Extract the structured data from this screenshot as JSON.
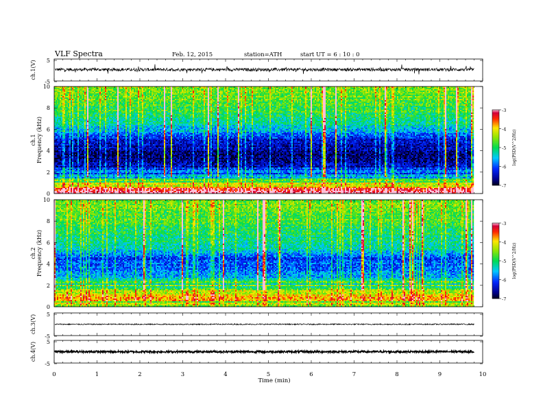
{
  "header": {
    "title": "VLF  Spectra",
    "date": "Feb. 12, 2015",
    "station": "station=ATH",
    "start": "start  UT  =   6  : 10 : 0"
  },
  "chart_data": {
    "type": "heatmap",
    "xlabel": "Time  (min)",
    "xlim": [
      0,
      10
    ],
    "x_ticks": [
      "0",
      "1",
      "2",
      "3",
      "4",
      "5",
      "6",
      "7",
      "8",
      "9",
      "10"
    ],
    "data_end_min": 9.8,
    "panels": [
      {
        "kind": "waveform",
        "ylabel": "ch.1(V)",
        "ylim": [
          -5,
          5
        ],
        "y_ticks": [
          "5",
          "-5"
        ],
        "baseline": 0.2,
        "noise": 0.7,
        "spikes": true
      },
      {
        "kind": "spectrogram",
        "ylabel": [
          "ch.1",
          "Frequency  (kHz)"
        ],
        "ylim": [
          0,
          10
        ],
        "y_ticks": [
          "0",
          "2",
          "4",
          "6",
          "8",
          "10"
        ],
        "colorbar": {
          "label": "log(PSD(V^2/Hz)",
          "range": [
            -7,
            -3
          ],
          "ticks": [
            "-3",
            "-4",
            "-5",
            "-6",
            "-7"
          ]
        },
        "profile": [
          {
            "f": 0.0,
            "v": -3.4
          },
          {
            "f": 0.5,
            "v": -3.2
          },
          {
            "f": 0.9,
            "v": -4.3
          },
          {
            "f": 1.6,
            "v": -5.6
          },
          {
            "f": 2.5,
            "v": -6.4
          },
          {
            "f": 3.5,
            "v": -6.6
          },
          {
            "f": 5.0,
            "v": -6.3
          },
          {
            "f": 6.0,
            "v": -5.4
          },
          {
            "f": 7.0,
            "v": -5.0
          },
          {
            "f": 8.5,
            "v": -4.6
          },
          {
            "f": 10.0,
            "v": -4.4
          }
        ]
      },
      {
        "kind": "spectrogram",
        "ylabel": [
          "ch.2",
          "Frequency  (kHz)"
        ],
        "ylim": [
          0,
          10
        ],
        "y_ticks": [
          "0",
          "2",
          "4",
          "6",
          "8",
          "10"
        ],
        "colorbar": {
          "label": "log(PSD(V^2/Hz)",
          "range": [
            -7,
            -3
          ],
          "ticks": [
            "-3",
            "-4",
            "-5",
            "-6",
            "-7"
          ]
        },
        "profile": [
          {
            "f": 0.0,
            "v": -4.8
          },
          {
            "f": 0.8,
            "v": -4.0
          },
          {
            "f": 1.5,
            "v": -4.2
          },
          {
            "f": 2.5,
            "v": -5.3
          },
          {
            "f": 3.5,
            "v": -5.8
          },
          {
            "f": 4.5,
            "v": -6.0
          },
          {
            "f": 5.5,
            "v": -5.2
          },
          {
            "f": 7.0,
            "v": -4.9
          },
          {
            "f": 8.5,
            "v": -4.6
          },
          {
            "f": 10.0,
            "v": -4.5
          }
        ]
      },
      {
        "kind": "waveform",
        "ylabel": "ch.3(V)",
        "ylim": [
          -5,
          5
        ],
        "y_ticks": [
          "5",
          "-5"
        ],
        "baseline": 0.0,
        "noise": 0.25,
        "spikes": false
      },
      {
        "kind": "waveform",
        "ylabel": "ch.4(V)",
        "ylim": [
          -5,
          5
        ],
        "y_ticks": [
          "5",
          "-5"
        ],
        "baseline": 0.0,
        "noise": 0.45,
        "spikes": false
      }
    ]
  }
}
